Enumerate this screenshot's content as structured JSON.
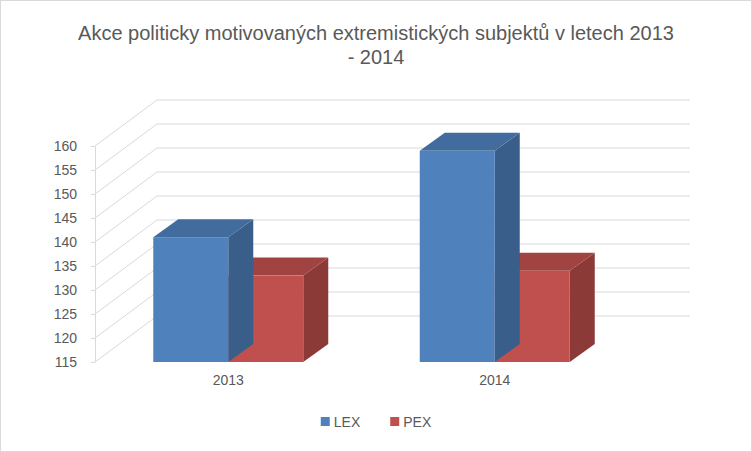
{
  "chart_data": {
    "type": "bar",
    "title": "Akce politicky motivovaných extremistických subjektů v letech 2013 - 2014",
    "categories": [
      "2013",
      "2014"
    ],
    "series": [
      {
        "name": "LEX",
        "color": "#4f81bd",
        "values": [
          141,
          159
        ]
      },
      {
        "name": "PEX",
        "color": "#c0504d",
        "values": [
          133,
          134
        ]
      }
    ],
    "ylim": [
      115,
      160
    ],
    "yticks": [
      115,
      120,
      125,
      130,
      135,
      140,
      145,
      150,
      155,
      160
    ],
    "grid": true,
    "legend": "bottom"
  }
}
